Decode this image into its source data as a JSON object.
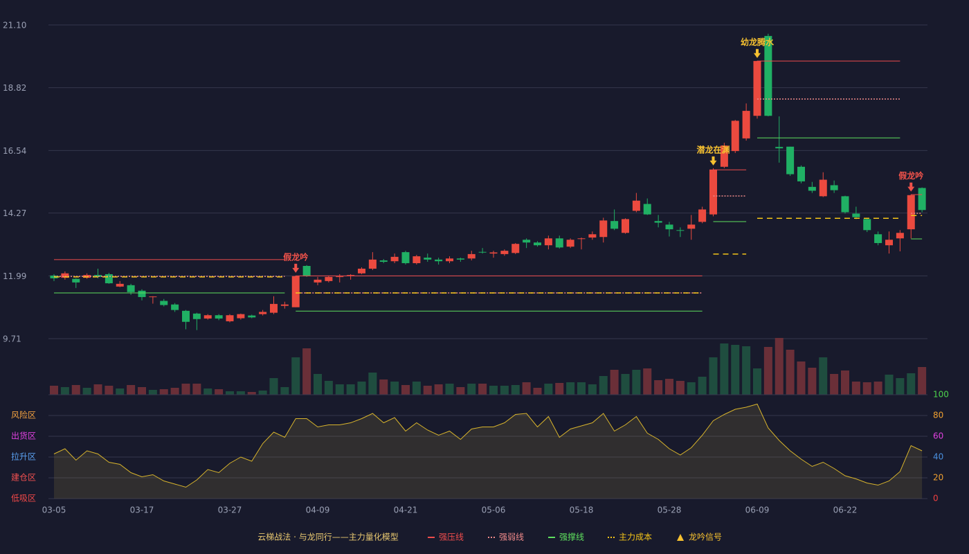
{
  "chart_data": {
    "type": "candlestick",
    "categories": [
      "03-05",
      null,
      null,
      null,
      null,
      null,
      null,
      null,
      "03-17",
      null,
      null,
      null,
      null,
      null,
      null,
      null,
      "03-27",
      null,
      null,
      null,
      null,
      null,
      null,
      null,
      "04-09",
      null,
      null,
      null,
      null,
      null,
      null,
      null,
      "04-21",
      null,
      null,
      null,
      null,
      null,
      null,
      null,
      "05-06",
      null,
      null,
      null,
      null,
      null,
      null,
      null,
      "05-18",
      null,
      null,
      null,
      null,
      null,
      null,
      null,
      "05-28",
      null,
      null,
      null,
      null,
      null,
      null,
      null,
      "06-09",
      null,
      null,
      null,
      null,
      null,
      null,
      null,
      "06-22",
      null,
      null,
      null,
      null,
      null,
      null,
      null
    ],
    "open": [
      12.0,
      11.92,
      11.88,
      11.92,
      12.02,
      12.05,
      11.6,
      11.65,
      11.45,
      11.22,
      11.08,
      10.95,
      10.72,
      10.62,
      10.44,
      10.56,
      10.34,
      10.45,
      10.55,
      10.6,
      10.65,
      10.9,
      10.85,
      12.35,
      11.75,
      11.8,
      11.95,
      12.0,
      12.08,
      12.25,
      12.55,
      12.52,
      12.85,
      12.45,
      12.65,
      12.58,
      12.52,
      12.62,
      12.62,
      12.86,
      12.8,
      12.78,
      12.82,
      13.3,
      13.2,
      13.1,
      13.35,
      13.05,
      13.33,
      13.38,
      13.4,
      13.98,
      13.55,
      14.35,
      14.6,
      13.98,
      13.85,
      13.65,
      13.7,
      13.95,
      14.22,
      15.95,
      16.52,
      16.98,
      17.8,
      20.7,
      16.67,
      16.68,
      15.95,
      15.22,
      14.88,
      15.28,
      14.88,
      14.25,
      14.05,
      13.5,
      13.1,
      13.35,
      13.68,
      15.18
    ],
    "high": [
      12.05,
      12.15,
      11.9,
      12.08,
      12.25,
      12.1,
      11.8,
      11.7,
      11.5,
      11.25,
      11.15,
      11.0,
      10.75,
      10.65,
      10.6,
      10.6,
      10.6,
      10.62,
      10.58,
      10.75,
      11.25,
      11.05,
      12.0,
      12.38,
      11.95,
      12.0,
      12.05,
      12.05,
      12.3,
      12.85,
      12.6,
      12.8,
      12.9,
      12.75,
      12.8,
      12.65,
      12.7,
      12.65,
      12.9,
      13.0,
      12.9,
      12.95,
      13.18,
      13.35,
      13.25,
      13.45,
      13.45,
      13.35,
      13.38,
      13.6,
      14.1,
      14.4,
      14.08,
      15.0,
      14.8,
      14.2,
      13.95,
      13.75,
      14.2,
      14.5,
      15.9,
      16.82,
      17.65,
      18.25,
      19.8,
      20.78,
      17.78,
      16.68,
      16.0,
      15.4,
      15.75,
      15.45,
      14.9,
      14.5,
      14.1,
      13.6,
      13.6,
      13.65,
      14.95,
      15.2
    ],
    "low": [
      11.8,
      11.85,
      11.55,
      11.88,
      11.9,
      11.7,
      11.58,
      11.3,
      11.1,
      10.98,
      10.88,
      10.68,
      10.05,
      10.02,
      10.4,
      10.38,
      10.3,
      10.4,
      10.45,
      10.55,
      10.6,
      10.8,
      10.85,
      11.95,
      11.65,
      11.75,
      11.75,
      11.85,
      12.05,
      12.2,
      12.45,
      12.45,
      12.4,
      12.4,
      12.5,
      12.4,
      12.45,
      12.5,
      12.55,
      12.8,
      12.65,
      12.72,
      12.78,
      13.0,
      13.05,
      12.95,
      12.98,
      13.0,
      12.95,
      13.3,
      13.2,
      13.65,
      13.52,
      14.3,
      14.2,
      13.75,
      13.42,
      13.4,
      13.3,
      13.9,
      14.15,
      15.9,
      16.45,
      16.9,
      17.7,
      17.78,
      16.1,
      15.62,
      15.35,
      15.0,
      14.85,
      15.0,
      14.25,
      14.05,
      13.58,
      13.1,
      12.8,
      12.88,
      13.35,
      14.3
    ],
    "close": [
      11.9,
      12.08,
      11.75,
      12.02,
      11.95,
      11.72,
      11.7,
      11.4,
      11.22,
      11.24,
      10.93,
      10.75,
      10.32,
      10.42,
      10.56,
      10.44,
      10.56,
      10.6,
      10.48,
      10.68,
      10.97,
      10.95,
      11.98,
      11.98,
      11.85,
      11.95,
      11.97,
      12.02,
      12.25,
      12.58,
      12.5,
      12.68,
      12.45,
      12.7,
      12.58,
      12.52,
      12.62,
      12.58,
      12.78,
      12.84,
      12.84,
      12.9,
      13.15,
      13.2,
      13.1,
      13.35,
      13.02,
      13.3,
      13.35,
      13.5,
      14.0,
      13.7,
      14.05,
      14.72,
      14.22,
      13.92,
      13.68,
      13.63,
      13.85,
      14.4,
      15.85,
      16.72,
      17.62,
      17.98,
      19.79,
      17.8,
      16.62,
      15.68,
      15.42,
      15.08,
      15.48,
      15.1,
      14.3,
      14.12,
      13.65,
      13.18,
      13.3,
      13.55,
      14.92,
      14.38
    ],
    "up_color": "#eb4a3f",
    "down_color": "#20b064",
    "ylim": [
      9.71,
      21.1
    ],
    "yticks": [
      {
        "value": 21.1,
        "label": "21.10"
      },
      18.82,
      16.54,
      14.27,
      11.99,
      9.71
    ],
    "grid": true,
    "levels": [
      {
        "name": "强压线",
        "color": "#ee4c4c",
        "dashed": false,
        "values": [
          12.58,
          12.58,
          12.58,
          12.58,
          12.58,
          12.58,
          12.58,
          12.58,
          12.58,
          12.58,
          12.58,
          12.58,
          12.58,
          12.58,
          12.58,
          12.58,
          12.58,
          12.58,
          12.58,
          12.58,
          12.58,
          12.58,
          11.99,
          11.99,
          11.99,
          11.99,
          11.99,
          11.99,
          11.99,
          11.99,
          11.99,
          11.99,
          11.99,
          11.99,
          11.99,
          11.99,
          11.99,
          11.99,
          11.99,
          11.99,
          11.99,
          11.99,
          11.99,
          11.99,
          11.99,
          11.99,
          11.99,
          11.99,
          11.99,
          11.99,
          11.99,
          11.99,
          11.99,
          11.99,
          11.99,
          11.99,
          11.99,
          11.99,
          11.99,
          11.99,
          15.84,
          15.84,
          15.84,
          15.84,
          19.79,
          19.79,
          19.79,
          19.79,
          19.79,
          19.79,
          19.79,
          19.79,
          19.79,
          19.79,
          19.79,
          19.79,
          19.79,
          19.79,
          14.94,
          14.94
        ]
      },
      {
        "name": "强弱线",
        "color": "#f08a8a",
        "dashed": true,
        "values": [
          11.97,
          11.97,
          11.97,
          11.97,
          11.97,
          11.97,
          11.97,
          11.97,
          11.97,
          11.97,
          11.97,
          11.97,
          11.97,
          11.97,
          11.97,
          11.97,
          11.97,
          11.97,
          11.97,
          11.97,
          11.97,
          11.97,
          11.37,
          11.37,
          11.37,
          11.37,
          11.37,
          11.37,
          11.37,
          11.37,
          11.37,
          11.37,
          11.37,
          11.37,
          11.37,
          11.37,
          11.37,
          11.37,
          11.37,
          11.37,
          11.37,
          11.37,
          11.37,
          11.37,
          11.37,
          11.37,
          11.37,
          11.37,
          11.37,
          11.37,
          11.37,
          11.37,
          11.37,
          11.37,
          11.37,
          11.37,
          11.37,
          11.37,
          11.37,
          11.37,
          14.89,
          14.89,
          14.89,
          14.89,
          18.41,
          18.41,
          18.41,
          18.41,
          18.41,
          18.41,
          18.41,
          18.41,
          18.41,
          18.41,
          18.41,
          18.41,
          18.41,
          18.41,
          14.26,
          14.26
        ]
      },
      {
        "name": "强撑线",
        "color": "#5ee05e",
        "dashed": false,
        "values": [
          11.37,
          11.37,
          11.37,
          11.37,
          11.37,
          11.37,
          11.37,
          11.37,
          11.37,
          11.37,
          11.37,
          11.37,
          11.37,
          11.37,
          11.37,
          11.37,
          11.37,
          11.37,
          11.37,
          11.37,
          11.37,
          11.37,
          10.71,
          10.71,
          10.71,
          10.71,
          10.71,
          10.71,
          10.71,
          10.71,
          10.71,
          10.71,
          10.71,
          10.71,
          10.71,
          10.71,
          10.71,
          10.71,
          10.71,
          10.71,
          10.71,
          10.71,
          10.71,
          10.71,
          10.71,
          10.71,
          10.71,
          10.71,
          10.71,
          10.71,
          10.71,
          10.71,
          10.71,
          10.71,
          10.71,
          10.71,
          10.71,
          10.71,
          10.71,
          10.71,
          13.96,
          13.96,
          13.96,
          13.96,
          17.0,
          17.0,
          17.0,
          17.0,
          17.0,
          17.0,
          17.0,
          17.0,
          17.0,
          17.0,
          17.0,
          17.0,
          17.0,
          17.0,
          13.33,
          13.33
        ]
      },
      {
        "name": "主力成本",
        "color": "#f5c518",
        "dashed": true,
        "values": [
          11.95,
          11.95,
          11.95,
          11.95,
          11.95,
          11.95,
          11.95,
          11.95,
          11.95,
          11.95,
          11.95,
          11.95,
          11.95,
          11.95,
          11.95,
          11.95,
          11.95,
          11.95,
          11.95,
          11.95,
          11.95,
          11.95,
          11.37,
          11.37,
          11.37,
          11.37,
          11.37,
          11.37,
          11.37,
          11.37,
          11.37,
          11.37,
          11.37,
          11.37,
          11.37,
          11.37,
          11.37,
          11.37,
          11.37,
          11.37,
          11.37,
          11.37,
          11.37,
          11.37,
          11.37,
          11.37,
          11.37,
          11.37,
          11.37,
          11.37,
          11.37,
          11.37,
          11.37,
          11.37,
          11.37,
          11.37,
          11.37,
          11.37,
          11.37,
          11.37,
          12.78,
          12.78,
          12.78,
          12.78,
          14.08,
          14.08,
          14.08,
          14.08,
          14.08,
          14.08,
          14.08,
          14.08,
          14.08,
          14.08,
          14.08,
          14.08,
          14.08,
          14.08,
          14.18,
          14.18
        ]
      }
    ],
    "signals": [
      {
        "index": 22,
        "label": "假龙吟",
        "color": "#f0524a"
      },
      {
        "index": 60,
        "label": "潜龙在渊",
        "color": "#f5c030"
      },
      {
        "index": 64,
        "label": "幼龙腾水",
        "color": "#f5c030"
      },
      {
        "index": 78,
        "label": "假龙吟",
        "color": "#f0524a"
      }
    ],
    "signal_legend": {
      "label": "龙吟信号",
      "color": "#f5c030"
    },
    "volume": [
      13,
      11,
      14,
      10,
      15,
      13,
      9,
      14,
      11,
      7,
      8,
      10,
      16,
      16,
      9,
      8,
      5,
      5,
      4,
      6,
      24,
      11,
      54,
      67,
      30,
      20,
      15,
      15,
      19,
      32,
      22,
      19,
      14,
      19,
      13,
      15,
      16,
      11,
      16,
      16,
      13,
      13,
      14,
      18,
      10,
      16,
      17,
      18,
      18,
      15,
      27,
      36,
      30,
      36,
      38,
      21,
      23,
      20,
      18,
      26,
      54,
      74,
      72,
      70,
      38,
      69,
      82,
      65,
      48,
      39,
      54,
      30,
      35,
      19,
      18,
      19,
      29,
      24,
      31,
      40
    ],
    "volume_up_color": "#1f4d3f",
    "volume_down_color": "#6a2f38",
    "vlim": [
      0,
      82
    ],
    "indicator": {
      "values": [
        43,
        48,
        37,
        46,
        43,
        35,
        33,
        25,
        21,
        23,
        17,
        14,
        11,
        18,
        28,
        25,
        34,
        40,
        36,
        53,
        64,
        59,
        77,
        77,
        69,
        71,
        71,
        73,
        77,
        82,
        73,
        78,
        65,
        73,
        66,
        61,
        65,
        57,
        67,
        69,
        69,
        73,
        81,
        82,
        69,
        79,
        59,
        67,
        70,
        73,
        82,
        65,
        71,
        79,
        63,
        57,
        48,
        42,
        49,
        61,
        75,
        81,
        86,
        88,
        91,
        68,
        56,
        46,
        38,
        31,
        35,
        29,
        22,
        19,
        15,
        13,
        17,
        26,
        51,
        46
      ],
      "color": "#d8b42c",
      "ylim": [
        0,
        100
      ],
      "yticks": [
        100,
        80,
        60,
        40,
        20,
        0
      ],
      "ytick_colors": [
        "#4cd24c",
        "#f0a030",
        "#e040e0",
        "#4a90e0",
        "#f0a030",
        "#f04040"
      ],
      "zones": [
        {
          "value": 80,
          "label": "风险区",
          "color": "#f0a040"
        },
        {
          "value": 60,
          "label": "出货区",
          "color": "#e040e0"
        },
        {
          "value": 40,
          "label": "拉升区",
          "color": "#5aa0f0"
        },
        {
          "value": 20,
          "label": "建仓区",
          "color": "#f05050"
        },
        {
          "value": 0,
          "label": "低吸区",
          "color": "#f04848"
        }
      ]
    },
    "legend_title": "云梯战法 · 与龙同行——主力量化模型"
  }
}
